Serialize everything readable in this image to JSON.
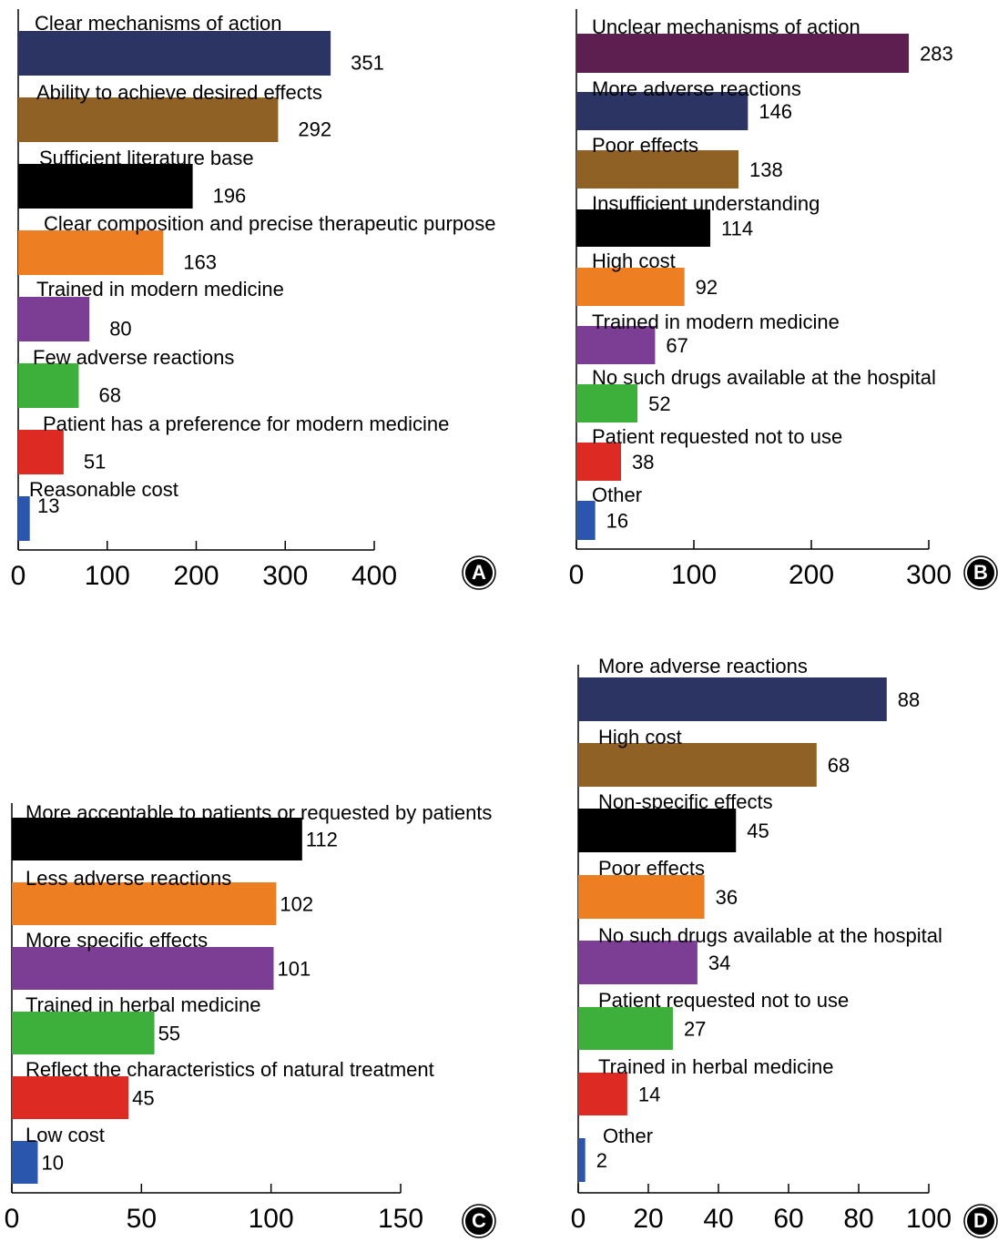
{
  "chart_data": [
    {
      "type": "bar",
      "panel": "A",
      "orientation": "horizontal",
      "categories": [
        "Clear mechanisms of action",
        "Ability to achieve desired effects",
        "Sufficient literature base",
        "Clear composition and precise therapeutic purpose",
        "Trained in modern medicine",
        "Few adverse reactions",
        "Patient has a preference for modern medicine",
        "Reasonable cost"
      ],
      "values": [
        351,
        292,
        196,
        163,
        80,
        68,
        51,
        13
      ],
      "colors": [
        "#2b3463",
        "#8f6125",
        "#000000",
        "#ee7e22",
        "#7c3e95",
        "#3cb03a",
        "#dd2a22",
        "#2a56ad"
      ],
      "xlim": [
        0,
        400
      ],
      "xticks": [
        0,
        100,
        200,
        300,
        400
      ]
    },
    {
      "type": "bar",
      "panel": "B",
      "orientation": "horizontal",
      "categories": [
        "Unclear mechanisms of action",
        "More adverse reactions",
        "Poor effects",
        "Insufficient understanding",
        "High cost",
        "Trained in modern medicine",
        "No such drugs available at the hospital",
        "Patient requested not to use",
        "Other"
      ],
      "values": [
        283,
        146,
        138,
        114,
        92,
        67,
        52,
        38,
        16
      ],
      "colors": [
        "#5c1f4f",
        "#2b3463",
        "#8f6125",
        "#000000",
        "#ee7e22",
        "#7c3e95",
        "#3cb03a",
        "#dd2a22",
        "#2a56ad"
      ],
      "xlim": [
        0,
        300
      ],
      "xticks": [
        0,
        100,
        200,
        300
      ]
    },
    {
      "type": "bar",
      "panel": "C",
      "orientation": "horizontal",
      "categories": [
        "More acceptable to patients or requested by patients",
        "Less adverse reactions",
        "More specific effects",
        "Trained in herbal medicine",
        "Reflect the characteristics of natural treatment",
        "Low cost"
      ],
      "values": [
        112,
        102,
        101,
        55,
        45,
        10
      ],
      "colors": [
        "#000000",
        "#ee7e22",
        "#7c3e95",
        "#3cb03a",
        "#dd2a22",
        "#2a56ad"
      ],
      "xlim": [
        0,
        150
      ],
      "xticks": [
        0,
        50,
        100,
        150
      ]
    },
    {
      "type": "bar",
      "panel": "D",
      "orientation": "horizontal",
      "categories": [
        "More adverse reactions",
        "High cost",
        "Non-specific effects",
        "Poor effects",
        "No such drugs available at the hospital",
        "Patient requested not to use",
        "Trained in herbal medicine",
        "Other"
      ],
      "values": [
        88,
        68,
        45,
        36,
        34,
        27,
        14,
        2
      ],
      "colors": [
        "#2b3463",
        "#8f6125",
        "#000000",
        "#ee7e22",
        "#7c3e95",
        "#3cb03a",
        "#dd2a22",
        "#2a56ad"
      ],
      "xlim": [
        0,
        100
      ],
      "xticks": [
        0,
        20,
        40,
        60,
        80,
        100
      ]
    }
  ]
}
